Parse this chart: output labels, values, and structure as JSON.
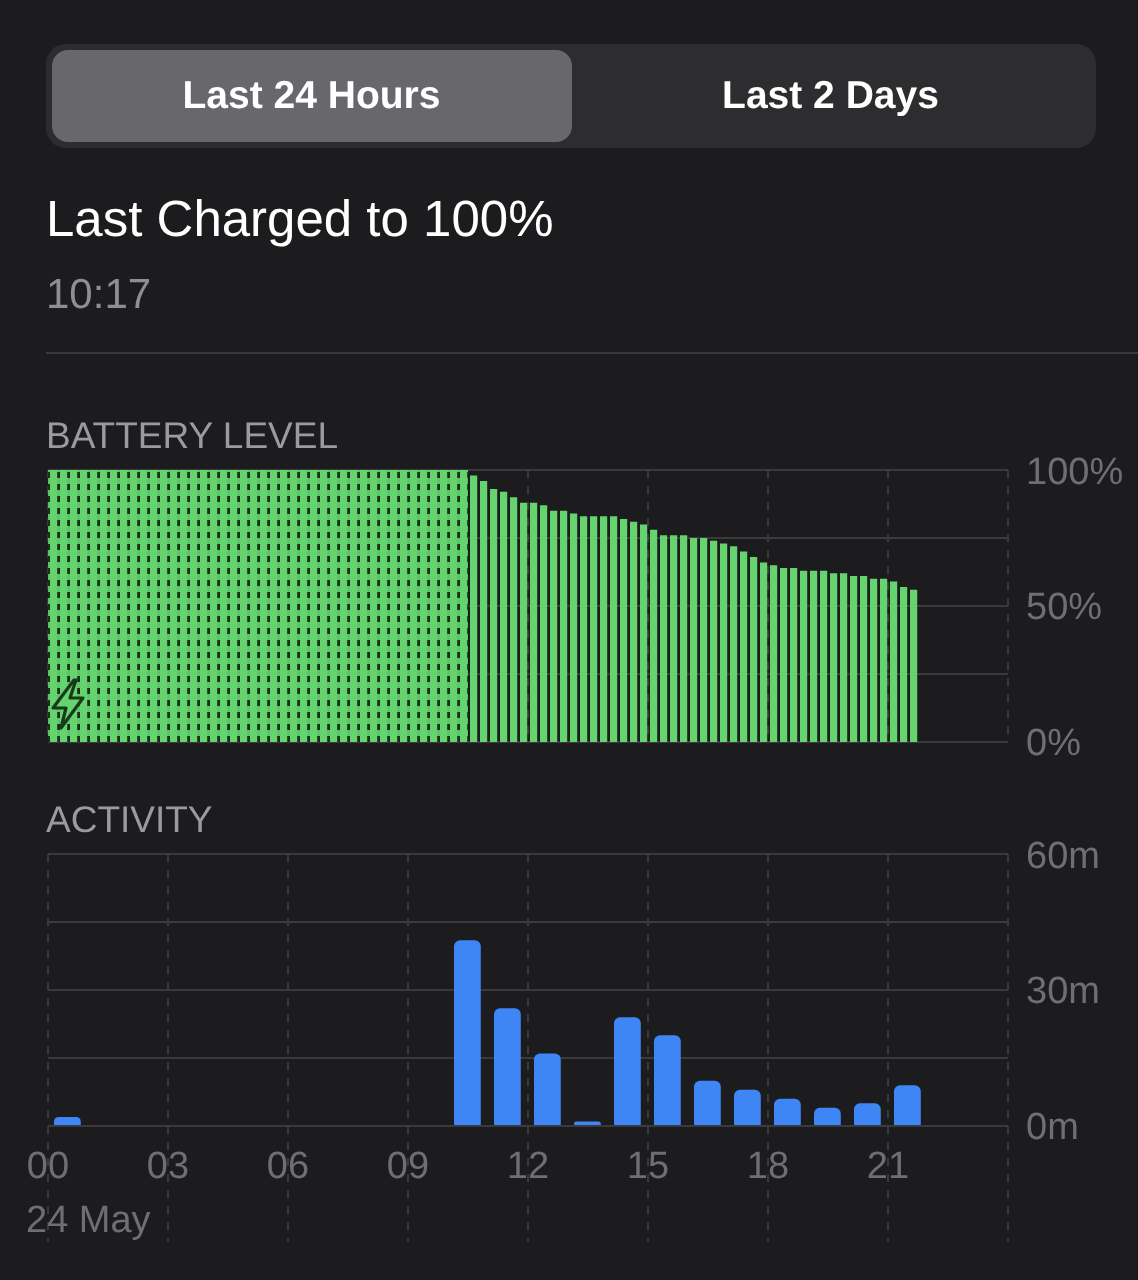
{
  "chart_data": [
    {
      "type": "other",
      "title": "Last Charged to 100%",
      "subtitle": "10:17",
      "annotations": [
        "Last 24 Hours",
        "Last 2 Days"
      ]
    },
    {
      "type": "bar",
      "title": "BATTERY LEVEL",
      "x": [
        0.125,
        0.375,
        0.625,
        0.875,
        1.125,
        1.375,
        1.625,
        1.875,
        2.125,
        2.375,
        2.625,
        2.875,
        3.125,
        3.375,
        3.625,
        3.875,
        4.125,
        4.375,
        4.625,
        4.875,
        5.125,
        5.375,
        5.625,
        5.875,
        6.125,
        6.375,
        6.625,
        6.875,
        7.125,
        7.375,
        7.625,
        7.875,
        8.125,
        8.375,
        8.625,
        8.875,
        9.125,
        9.375,
        9.625,
        9.875,
        10.125,
        10.375,
        10.625,
        10.875,
        11.125,
        11.375,
        11.625,
        11.875,
        12.125,
        12.375,
        12.625,
        12.875,
        13.125,
        13.375,
        13.625,
        13.875,
        14.125,
        14.375,
        14.625,
        14.875,
        15.125,
        15.375,
        15.625,
        15.875,
        16.125,
        16.375,
        16.625,
        16.875,
        17.125,
        17.375,
        17.625,
        17.875,
        18.125,
        18.375,
        18.625,
        18.875,
        19.125,
        19.375,
        19.625,
        19.875,
        20.125,
        20.375,
        20.625,
        20.875,
        21.125,
        21.375,
        21.625
      ],
      "values": [
        100,
        100,
        100,
        100,
        100,
        100,
        100,
        100,
        100,
        100,
        100,
        100,
        100,
        100,
        100,
        100,
        100,
        100,
        100,
        100,
        100,
        100,
        100,
        100,
        100,
        100,
        100,
        100,
        100,
        100,
        100,
        100,
        100,
        100,
        100,
        100,
        100,
        100,
        100,
        100,
        100,
        100,
        98,
        96,
        93,
        92,
        90,
        88,
        88,
        87,
        85,
        85,
        84,
        83,
        83,
        83,
        83,
        82,
        81,
        80,
        78,
        76,
        76,
        76,
        75,
        75,
        74,
        73,
        72,
        70,
        68,
        66,
        65,
        64,
        64,
        63,
        63,
        63,
        62,
        62,
        61,
        61,
        60,
        60,
        59,
        57,
        56
      ],
      "color": "#65d46e",
      "xlim": [
        0,
        24
      ],
      "xticks": [
        {
          "value": 0,
          "label": null
        },
        {
          "value": 3,
          "label": null
        },
        {
          "value": 6,
          "label": null
        },
        {
          "value": 9,
          "label": null
        },
        {
          "value": 12,
          "label": null
        },
        {
          "value": 15,
          "label": null
        },
        {
          "value": 18,
          "label": null
        },
        {
          "value": 21,
          "label": null
        },
        {
          "value": 24,
          "label": null
        }
      ],
      "ylim": [
        0,
        100
      ],
      "yticks": [
        {
          "value": 0,
          "label": "0%"
        },
        {
          "value": 25,
          "label": null
        },
        {
          "value": 50,
          "label": "50%"
        },
        {
          "value": 75,
          "label": null
        },
        {
          "value": 100,
          "label": "100%"
        }
      ],
      "grid": true,
      "tick_labels": "y",
      "bands": [
        {
          "axis": "x",
          "from": 0,
          "to": 10.5,
          "color": "#5cc466"
        }
      ]
    },
    {
      "type": "bar",
      "title": "ACTIVITY",
      "x": [
        0.5,
        10.5,
        11.5,
        12.5,
        13.5,
        14.5,
        15.5,
        16.5,
        17.5,
        18.5,
        19.5,
        20.5,
        21.5
      ],
      "values": [
        2,
        41,
        26,
        16,
        1,
        24,
        20,
        10,
        8,
        6,
        4,
        5,
        9
      ],
      "color": "#3e86f6",
      "xlim": [
        0,
        24
      ],
      "xticks": [
        {
          "value": 0,
          "label": "00"
        },
        {
          "value": 3,
          "label": "03"
        },
        {
          "value": 6,
          "label": "06"
        },
        {
          "value": 9,
          "label": "09"
        },
        {
          "value": 12,
          "label": "12"
        },
        {
          "value": 15,
          "label": "15"
        },
        {
          "value": 18,
          "label": "18"
        },
        {
          "value": 21,
          "label": "21"
        },
        {
          "value": 24,
          "label": null
        }
      ],
      "ylim": [
        0,
        60
      ],
      "yticks": [
        {
          "value": 0,
          "label": "0m"
        },
        {
          "value": 15,
          "label": null
        },
        {
          "value": 30,
          "label": "30m"
        },
        {
          "value": 45,
          "label": null
        },
        {
          "value": 60,
          "label": "60m"
        }
      ],
      "grid": true,
      "annotations": [
        "24 May"
      ]
    }
  ]
}
